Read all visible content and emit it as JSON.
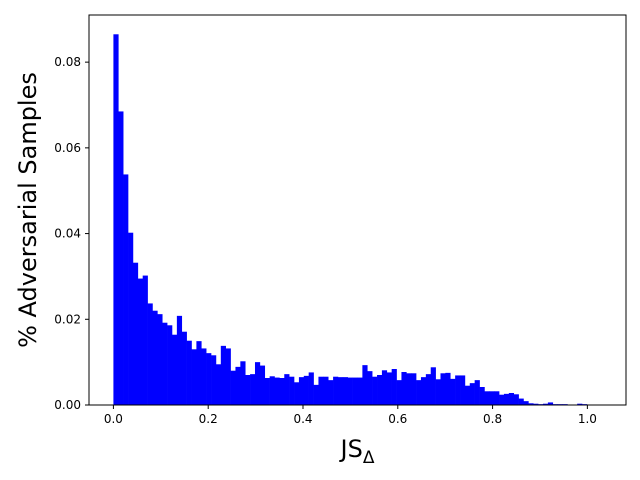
{
  "chart_data": {
    "type": "bar",
    "title": "",
    "xlabel": "JS",
    "xlabel_subscript": "Δ",
    "ylabel": "% Adversarial Samples",
    "xlim": [
      -0.0515,
      1.0815
    ],
    "ylim": [
      0,
      0.091
    ],
    "xticks": [
      0.0,
      0.2,
      0.4,
      0.6,
      0.8,
      1.0
    ],
    "xtick_labels": [
      "0.0",
      "0.2",
      "0.4",
      "0.6",
      "0.8",
      "1.0"
    ],
    "yticks": [
      0.0,
      0.02,
      0.04,
      0.06,
      0.08
    ],
    "ytick_labels": [
      "0.00",
      "0.02",
      "0.04",
      "0.06",
      "0.08"
    ],
    "grid": false,
    "legend": "none",
    "bar_color": "#0000ff",
    "bin_start": 0.0,
    "bin_width": 0.0103,
    "values": [
      0.0865,
      0.0685,
      0.0538,
      0.0402,
      0.0332,
      0.0295,
      0.0302,
      0.0237,
      0.022,
      0.0212,
      0.0192,
      0.0186,
      0.0164,
      0.0208,
      0.0171,
      0.015,
      0.013,
      0.0149,
      0.0132,
      0.0121,
      0.0116,
      0.0095,
      0.0138,
      0.0132,
      0.008,
      0.0089,
      0.0102,
      0.007,
      0.0072,
      0.01,
      0.0092,
      0.0063,
      0.0067,
      0.0064,
      0.0063,
      0.0072,
      0.0066,
      0.0053,
      0.0065,
      0.0068,
      0.0076,
      0.0047,
      0.0066,
      0.0066,
      0.0058,
      0.0066,
      0.0065,
      0.0065,
      0.0064,
      0.0064,
      0.0064,
      0.0093,
      0.0079,
      0.0066,
      0.007,
      0.0081,
      0.0076,
      0.0084,
      0.0058,
      0.0077,
      0.0074,
      0.0074,
      0.0058,
      0.0065,
      0.0072,
      0.0088,
      0.006,
      0.0074,
      0.0075,
      0.0061,
      0.0069,
      0.0069,
      0.0045,
      0.0051,
      0.0058,
      0.0042,
      0.0032,
      0.0032,
      0.0032,
      0.0024,
      0.0026,
      0.0028,
      0.0025,
      0.0015,
      0.0009,
      0.0004,
      0.0003,
      0.0002,
      0.0003,
      0.0006,
      0.0002,
      0.0002,
      0.0002,
      0.0001,
      0.0001,
      0.0003,
      0.0002,
      0.0001,
      0.0001
    ]
  }
}
